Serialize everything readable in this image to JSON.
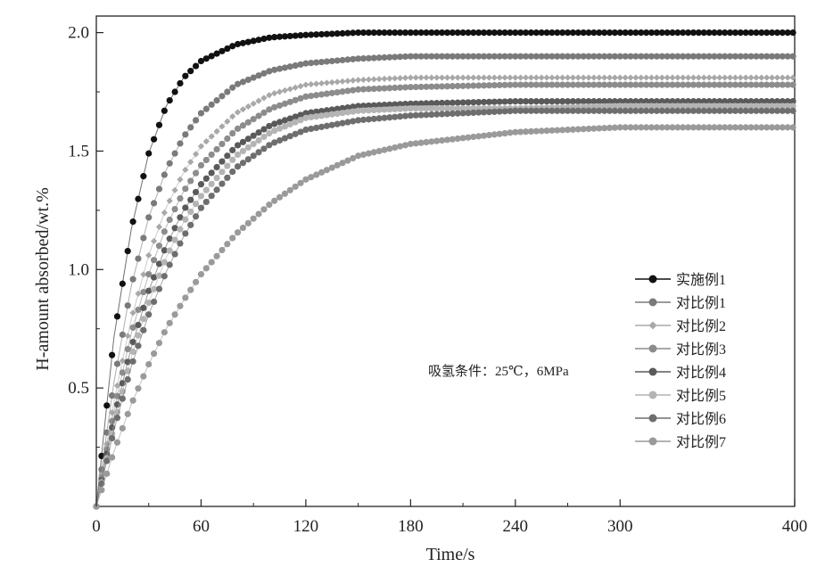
{
  "chart_data": {
    "type": "scatter",
    "xlabel": "Time/s",
    "ylabel": "H-amount absorbed/wt.%",
    "xlim": [
      0,
      400
    ],
    "ylim": [
      0,
      2.07
    ],
    "xticks": [
      0,
      60,
      120,
      180,
      240,
      300,
      400
    ],
    "xtick_labels": [
      "0",
      "60",
      "120",
      "180",
      "240",
      "300",
      "400"
    ],
    "yticks": [
      0.5,
      1.0,
      1.5,
      2.0
    ],
    "ytick_labels": [
      "0.5",
      "1.0",
      "1.5",
      "2.0"
    ],
    "annotation": "吸氢条件：25℃，6MPa",
    "legend_position": "right",
    "grid": false,
    "series": [
      {
        "name": "实施例1",
        "color": "#111111",
        "marker": "circle",
        "x": [
          0,
          10,
          20,
          30,
          40,
          50,
          60,
          80,
          100,
          120,
          150,
          180,
          240,
          300,
          400
        ],
        "y": [
          0,
          0.71,
          1.17,
          1.49,
          1.69,
          1.81,
          1.88,
          1.95,
          1.98,
          1.99,
          2.0,
          2.0,
          2.0,
          2.0,
          2.0
        ]
      },
      {
        "name": "对比例1",
        "color": "#7a7a7a",
        "marker": "circle",
        "x": [
          0,
          10,
          20,
          30,
          40,
          50,
          60,
          80,
          100,
          120,
          150,
          180,
          240,
          300,
          400
        ],
        "y": [
          0,
          0.52,
          0.93,
          1.22,
          1.42,
          1.56,
          1.66,
          1.78,
          1.84,
          1.87,
          1.89,
          1.9,
          1.9,
          1.9,
          1.9
        ]
      },
      {
        "name": "对比例2",
        "color": "#a8a8a8",
        "marker": "diamond",
        "x": [
          0,
          10,
          20,
          30,
          40,
          50,
          60,
          80,
          100,
          120,
          150,
          180,
          240,
          300,
          400
        ],
        "y": [
          0,
          0.44,
          0.79,
          1.06,
          1.26,
          1.41,
          1.52,
          1.66,
          1.74,
          1.78,
          1.8,
          1.81,
          1.81,
          1.81,
          1.81
        ]
      },
      {
        "name": "对比例3",
        "color": "#8c8c8c",
        "marker": "circle",
        "x": [
          0,
          10,
          20,
          30,
          40,
          50,
          60,
          80,
          100,
          120,
          150,
          180,
          240,
          300,
          400
        ],
        "y": [
          0,
          0.4,
          0.73,
          0.98,
          1.18,
          1.33,
          1.44,
          1.59,
          1.68,
          1.73,
          1.76,
          1.77,
          1.78,
          1.78,
          1.78
        ]
      },
      {
        "name": "对比例4",
        "color": "#5a5a5a",
        "marker": "circle",
        "x": [
          0,
          10,
          20,
          30,
          40,
          50,
          60,
          80,
          100,
          120,
          150,
          180,
          240,
          300,
          400
        ],
        "y": [
          0,
          0.37,
          0.67,
          0.91,
          1.1,
          1.25,
          1.36,
          1.52,
          1.61,
          1.66,
          1.69,
          1.7,
          1.71,
          1.71,
          1.71
        ]
      },
      {
        "name": "对比例5",
        "color": "#b4b4b4",
        "marker": "circle",
        "x": [
          0,
          10,
          20,
          30,
          40,
          50,
          60,
          80,
          100,
          120,
          150,
          180,
          240,
          300,
          400
        ],
        "y": [
          0,
          0.34,
          0.63,
          0.86,
          1.05,
          1.2,
          1.31,
          1.48,
          1.58,
          1.64,
          1.67,
          1.68,
          1.68,
          1.69,
          1.69
        ]
      },
      {
        "name": "对比例6",
        "color": "#6e6e6e",
        "marker": "circle",
        "x": [
          0,
          10,
          20,
          30,
          40,
          50,
          60,
          80,
          100,
          120,
          150,
          180,
          240,
          300,
          400
        ],
        "y": [
          0,
          0.32,
          0.59,
          0.81,
          0.99,
          1.14,
          1.26,
          1.43,
          1.53,
          1.59,
          1.63,
          1.65,
          1.67,
          1.67,
          1.67
        ]
      },
      {
        "name": "对比例7",
        "color": "#9a9a9a",
        "marker": "circle",
        "x": [
          0,
          10,
          20,
          30,
          40,
          50,
          60,
          80,
          100,
          120,
          150,
          180,
          240,
          300,
          400
        ],
        "y": [
          0,
          0.23,
          0.43,
          0.6,
          0.75,
          0.87,
          0.98,
          1.15,
          1.28,
          1.38,
          1.48,
          1.53,
          1.58,
          1.6,
          1.6
        ]
      }
    ]
  }
}
